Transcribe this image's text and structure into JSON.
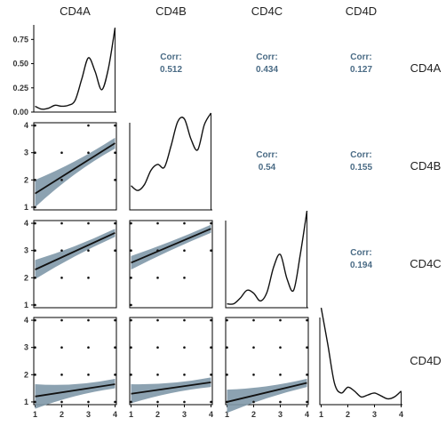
{
  "chart_data": {
    "type": "scatter-matrix",
    "variables": [
      "CD4A",
      "CD4B",
      "CD4C",
      "CD4D"
    ],
    "axis_ticks": [
      "1",
      "2",
      "3",
      "4"
    ],
    "density_y_ticks": [
      "0.00",
      "0.25",
      "0.50",
      "0.75"
    ],
    "correlations": [
      {
        "row": 0,
        "col": 1,
        "label": "Corr:",
        "value": "0.512"
      },
      {
        "row": 0,
        "col": 2,
        "label": "Corr:",
        "value": "0.434"
      },
      {
        "row": 0,
        "col": 3,
        "label": "Corr:",
        "value": "0.127"
      },
      {
        "row": 1,
        "col": 2,
        "label": "Corr:",
        "value": "0.54"
      },
      {
        "row": 1,
        "col": 3,
        "label": "Corr:",
        "value": "0.155"
      },
      {
        "row": 2,
        "col": 3,
        "label": "Corr:",
        "value": "0.194"
      }
    ],
    "densities": [
      {
        "variable": "CD4A",
        "x": [
          1,
          1.25,
          1.5,
          1.75,
          2,
          2.25,
          2.5,
          2.75,
          3,
          3.25,
          3.5,
          3.75,
          4
        ],
        "y": [
          0.06,
          0.03,
          0.04,
          0.07,
          0.06,
          0.07,
          0.12,
          0.34,
          0.56,
          0.42,
          0.23,
          0.45,
          0.87
        ]
      },
      {
        "variable": "CD4B",
        "x": [
          1,
          1.25,
          1.5,
          1.75,
          2,
          2.25,
          2.5,
          2.75,
          3,
          3.25,
          3.5,
          3.75,
          4
        ],
        "y": [
          0.25,
          0.2,
          0.26,
          0.41,
          0.47,
          0.44,
          0.66,
          0.91,
          0.94,
          0.73,
          0.62,
          0.88,
          1.0
        ]
      },
      {
        "variable": "CD4C",
        "x": [
          1,
          1.25,
          1.5,
          1.75,
          2,
          2.25,
          2.5,
          2.75,
          3,
          3.25,
          3.5,
          3.75,
          4
        ],
        "y": [
          0.04,
          0.04,
          0.1,
          0.18,
          0.15,
          0.07,
          0.16,
          0.42,
          0.55,
          0.3,
          0.18,
          0.55,
          1.0
        ]
      },
      {
        "variable": "CD4D",
        "x": [
          1,
          1.25,
          1.5,
          1.75,
          2,
          2.25,
          2.5,
          2.75,
          3,
          3.25,
          3.5,
          3.75,
          4
        ],
        "y": [
          1.0,
          0.62,
          0.22,
          0.12,
          0.18,
          0.14,
          0.08,
          0.1,
          0.12,
          0.09,
          0.06,
          0.08,
          0.14
        ]
      }
    ],
    "scatter": [
      {
        "row": 1,
        "col": 0,
        "points": [
          [
            1,
            1
          ],
          [
            1,
            2
          ],
          [
            1,
            3
          ],
          [
            1,
            4
          ],
          [
            2,
            2
          ],
          [
            2,
            3
          ],
          [
            3,
            3
          ],
          [
            3,
            4
          ],
          [
            4,
            2
          ],
          [
            4,
            3
          ],
          [
            4,
            4
          ]
        ],
        "fit": {
          "x": [
            1,
            4
          ],
          "y": [
            1.5,
            3.35
          ]
        },
        "band": {
          "lower": [
            1.0,
            3.15
          ],
          "upper": [
            2.0,
            3.55
          ],
          "mid_lower": 2.35,
          "mid_upper": 2.6
        }
      },
      {
        "row": 2,
        "col": 0,
        "points": [
          [
            1,
            1
          ],
          [
            1,
            2
          ],
          [
            1,
            3
          ],
          [
            1,
            4
          ],
          [
            2,
            2
          ],
          [
            2,
            3
          ],
          [
            2,
            4
          ],
          [
            3,
            2
          ],
          [
            3,
            3
          ],
          [
            3,
            4
          ],
          [
            4,
            3
          ],
          [
            4,
            4
          ]
        ],
        "fit": {
          "x": [
            1,
            4
          ],
          "y": [
            2.3,
            3.65
          ]
        },
        "band": {
          "lower": [
            1.95,
            3.5
          ],
          "upper": [
            2.65,
            3.8
          ],
          "mid_lower": 2.85,
          "mid_upper": 3.1
        }
      },
      {
        "row": 2,
        "col": 1,
        "points": [
          [
            1,
            1
          ],
          [
            1,
            2
          ],
          [
            1,
            3
          ],
          [
            1,
            4
          ],
          [
            2,
            2
          ],
          [
            2,
            3
          ],
          [
            2,
            4
          ],
          [
            3,
            2
          ],
          [
            3,
            3
          ],
          [
            3,
            4
          ],
          [
            4,
            3
          ],
          [
            4,
            4
          ]
        ],
        "fit": {
          "x": [
            1,
            4
          ],
          "y": [
            2.55,
            3.8
          ]
        },
        "band": {
          "lower": [
            2.3,
            3.65
          ],
          "upper": [
            2.8,
            3.95
          ],
          "mid_lower": 3.05,
          "mid_upper": 3.3
        }
      },
      {
        "row": 3,
        "col": 0,
        "points": [
          [
            1,
            1
          ],
          [
            1,
            2
          ],
          [
            1,
            3
          ],
          [
            1,
            4
          ],
          [
            2,
            1
          ],
          [
            2,
            2
          ],
          [
            2,
            3
          ],
          [
            2,
            4
          ],
          [
            3,
            1
          ],
          [
            3,
            2
          ],
          [
            3,
            3
          ],
          [
            3,
            4
          ],
          [
            4,
            1
          ],
          [
            4,
            2
          ],
          [
            4,
            3
          ],
          [
            4,
            4
          ]
        ],
        "fit": {
          "x": [
            1,
            4
          ],
          "y": [
            1.2,
            1.65
          ]
        },
        "band": {
          "lower": [
            0.75,
            1.5
          ],
          "upper": [
            1.65,
            1.85
          ],
          "mid_lower": 1.3,
          "mid_upper": 1.55
        }
      },
      {
        "row": 3,
        "col": 1,
        "points": [
          [
            1,
            1
          ],
          [
            1,
            2
          ],
          [
            1,
            3
          ],
          [
            1,
            4
          ],
          [
            2,
            1
          ],
          [
            2,
            2
          ],
          [
            2,
            3
          ],
          [
            2,
            4
          ],
          [
            3,
            1
          ],
          [
            3,
            2
          ],
          [
            3,
            3
          ],
          [
            3,
            4
          ],
          [
            4,
            1
          ],
          [
            4,
            2
          ],
          [
            4,
            3
          ],
          [
            4,
            4
          ]
        ],
        "fit": {
          "x": [
            1,
            4
          ],
          "y": [
            1.3,
            1.72
          ]
        },
        "band": {
          "lower": [
            0.95,
            1.55
          ],
          "upper": [
            1.65,
            1.9
          ],
          "mid_lower": 1.4,
          "mid_upper": 1.62
        }
      },
      {
        "row": 3,
        "col": 2,
        "points": [
          [
            1,
            1
          ],
          [
            1,
            2
          ],
          [
            1,
            3
          ],
          [
            1,
            4
          ],
          [
            2,
            1
          ],
          [
            2,
            2
          ],
          [
            2,
            3
          ],
          [
            2,
            4
          ],
          [
            3,
            1
          ],
          [
            3,
            2
          ],
          [
            3,
            3
          ],
          [
            3,
            4
          ],
          [
            4,
            1
          ],
          [
            4,
            2
          ],
          [
            4,
            3
          ],
          [
            4,
            4
          ]
        ],
        "fit": {
          "x": [
            1,
            4
          ],
          "y": [
            1.0,
            1.7
          ]
        },
        "band": {
          "lower": [
            0.6,
            1.55
          ],
          "upper": [
            1.45,
            1.85
          ],
          "mid_lower": 1.2,
          "mid_upper": 1.5
        }
      }
    ],
    "xlim": [
      0.95,
      4.05
    ],
    "ylim": [
      0.9,
      4.1
    ],
    "density_ylim": [
      0,
      0.9
    ],
    "colors": {
      "fit": "#111111",
      "band": "#7f98a8",
      "corr": "#4a6b85",
      "point": "#111111"
    }
  }
}
